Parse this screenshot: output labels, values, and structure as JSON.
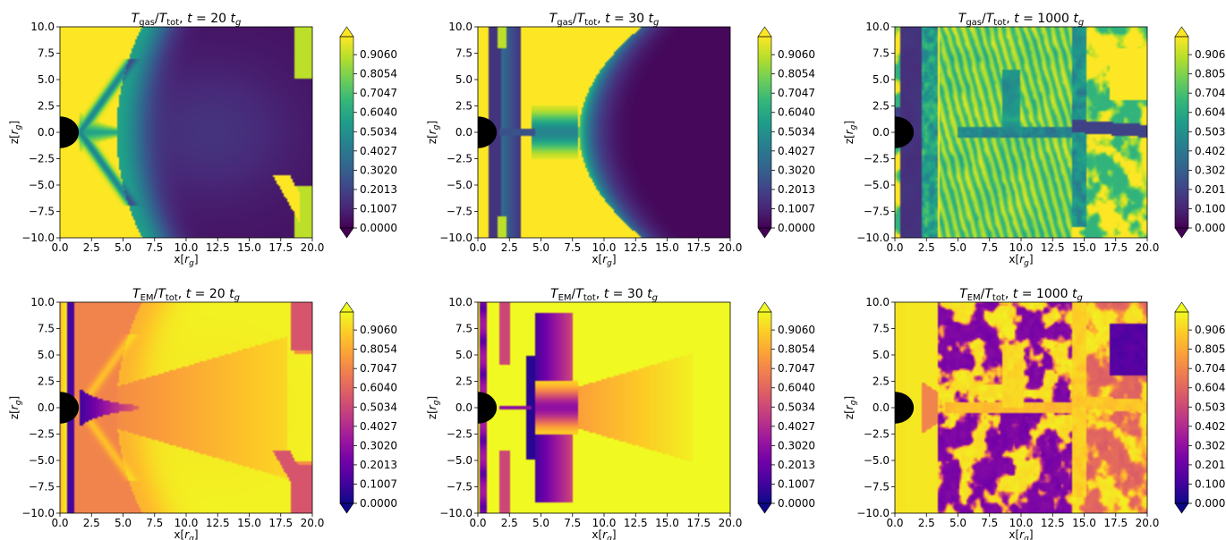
{
  "figure": {
    "palettes": {
      "viridis": [
        "#440154",
        "#482878",
        "#3e4989",
        "#31688e",
        "#26828e",
        "#1f9e89",
        "#35b779",
        "#6ece58",
        "#b5de2b",
        "#fde725"
      ],
      "plasma": [
        "#0d0887",
        "#46039f",
        "#7201a8",
        "#9c179e",
        "#bd3786",
        "#d8576b",
        "#ed7953",
        "#fb9f3a",
        "#fdca26",
        "#f0f921"
      ]
    },
    "colorbar": {
      "ticks": [
        "0.9060",
        "0.8054",
        "0.7047",
        "0.6040",
        "0.5034",
        "0.4027",
        "0.3020",
        "0.2013",
        "0.1007",
        "0.0000"
      ],
      "extend": "both"
    }
  },
  "chart_data": [
    {
      "type": "heatmap",
      "colormap": "viridis",
      "pattern": "gas20",
      "title": "T_gas/T_tot, t = 20 t_g",
      "title_parts": {
        "var": "T",
        "sub_var": "gas",
        "den": "T",
        "sub_den": "tot",
        "rest": ", t = 20 ",
        "tvar": "t",
        "tsub": "g"
      },
      "xlabel": "x[r_g]",
      "ylabel": "z[r_g]",
      "xlim": [
        0,
        20
      ],
      "ylim": [
        -10,
        10
      ],
      "zlim": [
        0,
        1
      ],
      "xticks": [
        "0.0",
        "2.5",
        "5.0",
        "7.5",
        "10.0",
        "12.5",
        "15.0",
        "17.5",
        "20.0"
      ],
      "yticks": [
        "10.0",
        "7.5",
        "5.0",
        "2.5",
        "0.0",
        "−2.5",
        "−5.0",
        "−7.5",
        "−10.0"
      ],
      "black_hole_radius": 1.5
    },
    {
      "type": "heatmap",
      "colormap": "viridis",
      "pattern": "gas30",
      "title": "T_gas/T_tot, t = 30 t_g",
      "title_parts": {
        "var": "T",
        "sub_var": "gas",
        "den": "T",
        "sub_den": "tot",
        "rest": ", t = 30 ",
        "tvar": "t",
        "tsub": "g"
      },
      "xlabel": "x[r_g]",
      "ylabel": "z[r_g]",
      "xlim": [
        0,
        20
      ],
      "ylim": [
        -10,
        10
      ],
      "zlim": [
        0,
        1
      ],
      "xticks": [
        "0.0",
        "2.5",
        "5.0",
        "7.5",
        "10.0",
        "12.5",
        "15.0",
        "17.5",
        "20.0"
      ],
      "yticks": [
        "10.0",
        "7.5",
        "5.0",
        "2.5",
        "0.0",
        "−2.5",
        "−5.0",
        "−7.5",
        "−10.0"
      ],
      "black_hole_radius": 1.5
    },
    {
      "type": "heatmap",
      "colormap": "viridis",
      "pattern": "gas1000",
      "title": "T_gas/T_tot, t = 1000 t_g",
      "title_parts": {
        "var": "T",
        "sub_var": "gas",
        "den": "T",
        "sub_den": "tot",
        "rest": ", t = 1000 ",
        "tvar": "t",
        "tsub": "g"
      },
      "xlabel": "x[r_g]",
      "ylabel": "z[r_g]",
      "xlim": [
        0,
        20
      ],
      "ylim": [
        -10,
        10
      ],
      "zlim": [
        0,
        1
      ],
      "xticks": [
        "0.0",
        "2.5",
        "5.0",
        "7.5",
        "10.0",
        "12.5",
        "15.0",
        "17.5",
        "20.0"
      ],
      "yticks": [
        "10.0",
        "7.5",
        "5.0",
        "2.5",
        "0.0",
        "−2.5",
        "−5.0",
        "−7.5",
        "−10.0"
      ],
      "black_hole_radius": 1.5
    },
    {
      "type": "heatmap",
      "colormap": "plasma",
      "pattern": "em20",
      "title": "T_EM/T_tot, t = 20 t_g",
      "title_parts": {
        "var": "T",
        "sub_var": "EM",
        "den": "T",
        "sub_den": "tot",
        "rest": ", t = 20 ",
        "tvar": "t",
        "tsub": "g"
      },
      "xlabel": "x[r_g]",
      "ylabel": "z[r_g]",
      "xlim": [
        0,
        20
      ],
      "ylim": [
        -10,
        10
      ],
      "zlim": [
        0,
        1
      ],
      "xticks": [
        "0.0",
        "2.5",
        "5.0",
        "7.5",
        "10.0",
        "12.5",
        "15.0",
        "17.5",
        "20.0"
      ],
      "yticks": [
        "10.0",
        "7.5",
        "5.0",
        "2.5",
        "0.0",
        "−2.5",
        "−5.0",
        "−7.5",
        "−10.0"
      ],
      "black_hole_radius": 1.5
    },
    {
      "type": "heatmap",
      "colormap": "plasma",
      "pattern": "em30",
      "title": "T_EM/T_tot, t = 30 t_g",
      "title_parts": {
        "var": "T",
        "sub_var": "EM",
        "den": "T",
        "sub_den": "tot",
        "rest": ", t = 30 ",
        "tvar": "t",
        "tsub": "g"
      },
      "xlabel": "x[r_g]",
      "ylabel": "z[r_g]",
      "xlim": [
        0,
        20
      ],
      "ylim": [
        -10,
        10
      ],
      "zlim": [
        0,
        1
      ],
      "xticks": [
        "0.0",
        "2.5",
        "5.0",
        "7.5",
        "10.0",
        "12.5",
        "15.0",
        "17.5",
        "20.0"
      ],
      "yticks": [
        "10.0",
        "7.5",
        "5.0",
        "2.5",
        "0.0",
        "−2.5",
        "−5.0",
        "−7.5",
        "−10.0"
      ],
      "black_hole_radius": 1.5
    },
    {
      "type": "heatmap",
      "colormap": "plasma",
      "pattern": "em1000",
      "title": "T_EM/T_tot, t = 1000 t_g",
      "title_parts": {
        "var": "T",
        "sub_var": "EM",
        "den": "T",
        "sub_den": "tot",
        "rest": ", t = 1000 ",
        "tvar": "t",
        "tsub": "g"
      },
      "xlabel": "x[r_g]",
      "ylabel": "z[r_g]",
      "xlim": [
        0,
        20
      ],
      "ylim": [
        -10,
        10
      ],
      "zlim": [
        0,
        1
      ],
      "xticks": [
        "0.0",
        "2.5",
        "5.0",
        "7.5",
        "10.0",
        "12.5",
        "15.0",
        "17.5",
        "20.0"
      ],
      "yticks": [
        "10.0",
        "7.5",
        "5.0",
        "2.5",
        "0.0",
        "−2.5",
        "−5.0",
        "−7.5",
        "−10.0"
      ],
      "black_hole_radius": 1.5
    }
  ]
}
